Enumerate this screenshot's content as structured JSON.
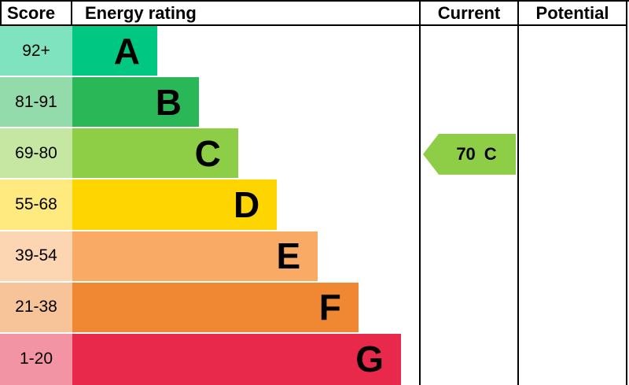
{
  "header": {
    "score": "Score",
    "energy_rating": "Energy rating",
    "current": "Current",
    "potential": "Potential"
  },
  "bands": [
    {
      "letter": "A",
      "score": "92+",
      "color": "#00c781",
      "tint": "#7fe3c0",
      "width_pct": 24.5
    },
    {
      "letter": "B",
      "score": "81-91",
      "color": "#2ab757",
      "tint": "#94dbab",
      "width_pct": 36.5
    },
    {
      "letter": "C",
      "score": "69-80",
      "color": "#8dce46",
      "tint": "#c6e7a2",
      "width_pct": 47.8
    },
    {
      "letter": "D",
      "score": "55-68",
      "color": "#ffd500",
      "tint": "#ffea80",
      "width_pct": 59.0
    },
    {
      "letter": "E",
      "score": "39-54",
      "color": "#f9ab66",
      "tint": "#fcd5b2",
      "width_pct": 70.8
    },
    {
      "letter": "F",
      "score": "21-38",
      "color": "#ef8733",
      "tint": "#f7c399",
      "width_pct": 82.5
    },
    {
      "letter": "G",
      "score": "1-20",
      "color": "#e8294b",
      "tint": "#f394a4",
      "width_pct": 94.8
    }
  ],
  "current": {
    "value": "70",
    "band": "C",
    "color": "#8dce46"
  },
  "chart_data": {
    "type": "bar",
    "title": "Energy rating",
    "categories": [
      "A",
      "B",
      "C",
      "D",
      "E",
      "F",
      "G"
    ],
    "score_ranges": [
      "92+",
      "81-91",
      "69-80",
      "55-68",
      "39-54",
      "21-38",
      "1-20"
    ],
    "bar_lengths_pct_of_plot": [
      24.5,
      36.5,
      47.8,
      59.0,
      70.8,
      82.5,
      94.8
    ],
    "columns": [
      "Score",
      "Energy rating",
      "Current",
      "Potential"
    ],
    "current": {
      "score": 70,
      "band": "C"
    },
    "potential": null,
    "legend_position": "none",
    "grid": false
  }
}
